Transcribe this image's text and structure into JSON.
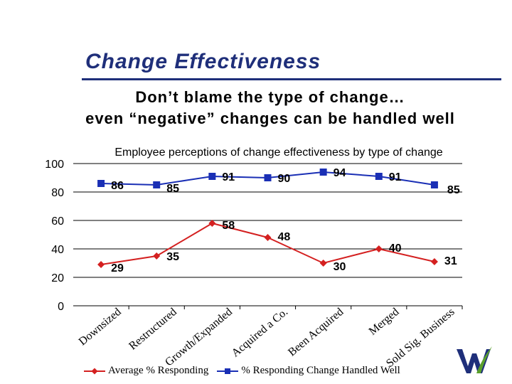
{
  "header": {
    "title": "Change Effectiveness",
    "subtitle_line1": "Don’t blame the type of change…",
    "subtitle_line2": "even “negative” changes can be handled well"
  },
  "colors": {
    "title": "#1f2f7a",
    "series_average": "#d42020",
    "series_handled": "#1a2fb5"
  },
  "chart_data": {
    "type": "line",
    "title": "Employee perceptions of change effectiveness by type of change",
    "categories": [
      "Downsized",
      "Restructured",
      "Growth/Expanded",
      "Acquired a Co.",
      "Been Acquired",
      "Merged",
      "Sold Sig. Business"
    ],
    "y_ticks": [
      "0",
      "20",
      "40",
      "60",
      "80",
      "100"
    ],
    "ylim": [
      0,
      100
    ],
    "grid": true,
    "legend_position": "bottom",
    "series": [
      {
        "name": "Average % Responding",
        "marker": "diamond",
        "values": [
          29,
          35,
          58,
          48,
          30,
          40,
          31
        ],
        "labels": [
          "29",
          "35",
          "58",
          "48",
          "30",
          "40",
          "31"
        ]
      },
      {
        "name": "% Responding Change Handled Well",
        "marker": "square",
        "values": [
          86,
          85,
          91,
          90,
          94,
          91,
          85
        ],
        "labels": [
          "86",
          "85",
          "91",
          "90",
          "94",
          "91",
          "85"
        ]
      }
    ]
  }
}
